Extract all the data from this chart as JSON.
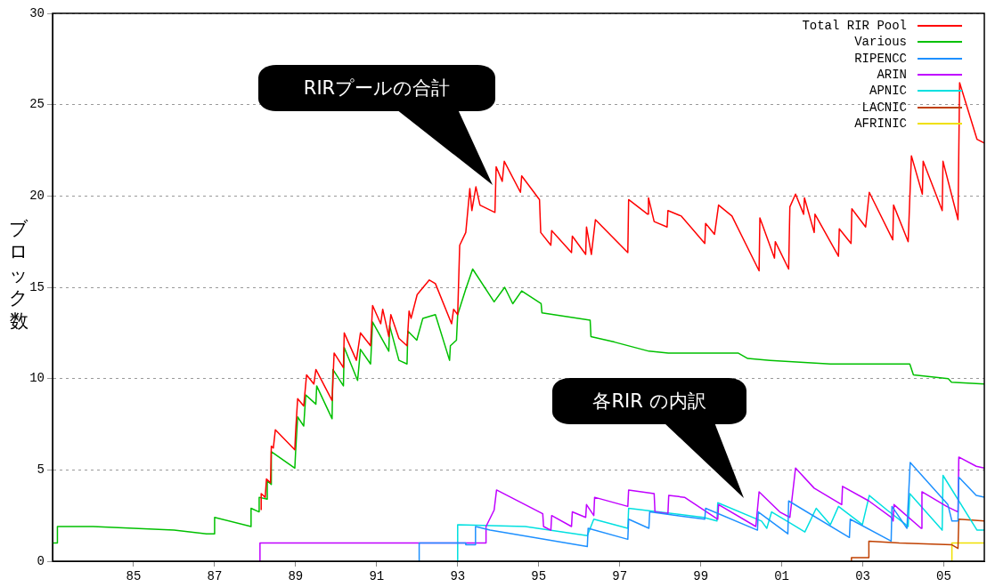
{
  "chart_data": {
    "type": "line",
    "ylabel": "ブロック数",
    "annotations": [
      "RIRプールの合計",
      "各RIR の内訳"
    ],
    "xlim": [
      1983,
      2006
    ],
    "xticks": [
      {
        "value": 1985,
        "label": "85"
      },
      {
        "value": 1987,
        "label": "87"
      },
      {
        "value": 1989,
        "label": "89"
      },
      {
        "value": 1991,
        "label": "91"
      },
      {
        "value": 1993,
        "label": "93"
      },
      {
        "value": 1995,
        "label": "95"
      },
      {
        "value": 1997,
        "label": "97"
      },
      {
        "value": 1999,
        "label": "99"
      },
      {
        "value": 2001,
        "label": "01"
      },
      {
        "value": 2003,
        "label": "03"
      },
      {
        "value": 2005,
        "label": "05"
      }
    ],
    "ylim": [
      0,
      30
    ],
    "yticks": [
      0,
      5,
      10,
      15,
      20,
      25,
      30
    ],
    "grid": "y",
    "legend": "top right",
    "marker": "none",
    "series": [
      {
        "name": "Total RIR Pool",
        "color": "#ff0000",
        "x": [
          1988.15,
          1988.15,
          1988.25,
          1988.28,
          1988.38,
          1988.4,
          1988.45,
          1988.5,
          1988.98,
          1989.0,
          1989.05,
          1989.2,
          1989.27,
          1989.45,
          1989.5,
          1989.9,
          1989.95,
          1990.18,
          1990.2,
          1990.5,
          1990.6,
          1990.85,
          1990.9,
          1991.1,
          1991.15,
          1991.3,
          1991.35,
          1991.55,
          1991.75,
          1991.8,
          1991.85,
          1992.0,
          1992.3,
          1992.45,
          1992.85,
          1992.9,
          1993.0,
          1993.05,
          1993.2,
          1993.3,
          1993.35,
          1993.45,
          1993.55,
          1993.92,
          1993.95,
          1994.1,
          1994.15,
          1994.55,
          1994.58,
          1995.02,
          1995.05,
          1995.3,
          1995.32,
          1995.81,
          1995.83,
          1996.16,
          1996.18,
          1996.3,
          1996.4,
          1997.2,
          1997.22,
          1997.69,
          1997.71,
          1997.85,
          1998.17,
          1998.19,
          1998.52,
          1999.1,
          1999.12,
          1999.34,
          1999.44,
          1999.77,
          2000.44,
          2000.46,
          2000.82,
          2000.84,
          2001.17,
          2001.2,
          2001.34,
          2001.54,
          2001.56,
          2001.8,
          2001.82,
          2002.4,
          2002.42,
          2002.71,
          2002.73,
          2003.07,
          2003.16,
          2003.74,
          2003.76,
          2004.12,
          2004.2,
          2004.47,
          2004.49,
          2004.96,
          2004.98,
          2005.35,
          2005.39,
          2005.82,
          2006.0
        ],
        "values": [
          2.8,
          3.7,
          3.5,
          4.5,
          4.3,
          6.3,
          6.2,
          7.2,
          6.1,
          7.1,
          8.9,
          8.5,
          10.2,
          9.7,
          10.5,
          8.8,
          11.4,
          10.6,
          12.5,
          11.0,
          12.5,
          11.8,
          14.0,
          13.0,
          13.8,
          12.3,
          13.5,
          12.2,
          11.8,
          13.7,
          13.3,
          14.6,
          15.4,
          15.2,
          13.0,
          13.8,
          13.5,
          17.3,
          18.0,
          20.4,
          19.2,
          20.5,
          19.5,
          19.1,
          21.6,
          20.8,
          21.9,
          20.2,
          21.1,
          19.8,
          18.0,
          17.3,
          18.1,
          16.9,
          17.8,
          16.8,
          18.3,
          16.8,
          18.7,
          16.9,
          19.8,
          19.0,
          19.9,
          18.6,
          18.3,
          19.2,
          18.9,
          17.4,
          18.5,
          17.9,
          19.5,
          18.9,
          15.9,
          18.8,
          16.6,
          17.5,
          16.0,
          19.4,
          20.1,
          19.0,
          19.9,
          18.0,
          19.0,
          16.7,
          18.2,
          17.4,
          19.3,
          18.3,
          20.2,
          17.6,
          19.5,
          17.5,
          22.2,
          20.1,
          21.9,
          19.2,
          21.9,
          18.7,
          26.2,
          23.1,
          22.9
        ]
      },
      {
        "name": "Various",
        "color": "#00c000",
        "x": [
          1983.0,
          1983.12,
          1983.12,
          1984.0,
          1985.0,
          1986.0,
          1986.8,
          1987.0,
          1987.0,
          1987.9,
          1987.9,
          1988.1,
          1988.1,
          1988.3,
          1988.3,
          1988.4,
          1988.4,
          1988.98,
          1989.0,
          1989.05,
          1989.2,
          1989.25,
          1989.5,
          1989.52,
          1989.9,
          1989.92,
          1990.18,
          1990.2,
          1990.53,
          1990.6,
          1990.85,
          1990.9,
          1991.3,
          1991.32,
          1991.55,
          1991.75,
          1991.77,
          1991.99,
          1992.14,
          1992.45,
          1992.8,
          1992.82,
          1992.97,
          1993.0,
          1993.2,
          1993.37,
          1993.9,
          1994.16,
          1994.36,
          1994.58,
          1995.06,
          1995.08,
          1996.27,
          1996.29,
          1996.87,
          1997.72,
          1998.2,
          1999.92,
          2000.16,
          2000.71,
          2002.2,
          2004.16,
          2004.25,
          2005.11,
          2005.19,
          2006.0
        ],
        "values": [
          1.0,
          1.0,
          1.9,
          1.9,
          1.8,
          1.7,
          1.5,
          1.5,
          2.4,
          1.9,
          2.9,
          2.7,
          3.5,
          3.4,
          4.4,
          4.2,
          6.0,
          5.1,
          6.0,
          7.9,
          7.4,
          9.1,
          8.6,
          9.6,
          7.8,
          10.5,
          9.6,
          11.7,
          9.9,
          11.6,
          10.8,
          13.1,
          11.5,
          12.9,
          11.0,
          10.8,
          12.6,
          12.1,
          13.3,
          13.5,
          11.0,
          11.8,
          12.1,
          13.5,
          14.9,
          16.0,
          14.2,
          15.0,
          14.1,
          14.8,
          14.1,
          13.6,
          13.2,
          12.3,
          12.0,
          11.5,
          11.4,
          11.4,
          11.1,
          11.0,
          10.8,
          10.8,
          10.2,
          10.0,
          9.8,
          9.7
        ]
      },
      {
        "name": "RIPENCC",
        "color": "#1e90ff",
        "x": [
          1992.05,
          1992.05,
          1993.2,
          1993.2,
          1993.44,
          1993.44,
          1993.8,
          1996.2,
          1996.22,
          1997.2,
          1997.22,
          1997.72,
          1997.74,
          1999.1,
          1999.12,
          2000.4,
          2000.42,
          2001.15,
          2001.17,
          2002.67,
          2002.69,
          2003.7,
          2003.72,
          2004.09,
          2004.17,
          2005.1,
          2005.2,
          2005.35,
          2005.37,
          2005.8,
          2006.0
        ],
        "values": [
          0,
          1.0,
          1.0,
          0.9,
          0.9,
          1.9,
          1.7,
          0.8,
          1.8,
          1.2,
          2.3,
          1.8,
          2.7,
          2.3,
          2.9,
          1.7,
          2.7,
          1.5,
          3.3,
          1.3,
          2.3,
          1.1,
          3.0,
          1.8,
          5.4,
          3.1,
          2.2,
          2.2,
          4.6,
          3.6,
          3.5
        ]
      },
      {
        "name": "ARIN",
        "color": "#c000ff",
        "x": [
          1988.12,
          1988.12,
          1993.7,
          1993.7,
          1993.9,
          1993.96,
          1995.1,
          1995.12,
          1995.3,
          1995.32,
          1995.81,
          1995.83,
          1996.16,
          1996.18,
          1996.36,
          1996.38,
          1997.2,
          1997.22,
          1997.85,
          1997.87,
          1998.19,
          1998.21,
          1998.6,
          1999.42,
          1999.44,
          2000.36,
          2000.44,
          2000.95,
          2001.2,
          2001.34,
          2001.8,
          2002.48,
          2002.5,
          2003.15,
          2003.7,
          2003.75,
          2003.77,
          2004.44,
          2004.46,
          2005.07,
          2005.35,
          2005.37,
          2005.8,
          2006.0
        ],
        "values": [
          0,
          1.0,
          1.0,
          1.9,
          2.8,
          3.9,
          2.6,
          1.9,
          1.7,
          2.5,
          1.9,
          2.7,
          2.4,
          3.1,
          2.5,
          3.5,
          3.0,
          3.9,
          3.7,
          2.7,
          2.6,
          3.6,
          3.5,
          2.3,
          3.1,
          1.9,
          3.8,
          2.7,
          2.4,
          5.1,
          4.0,
          3.1,
          4.1,
          3.3,
          2.4,
          2.2,
          3.1,
          1.8,
          3.8,
          3.0,
          2.7,
          5.7,
          5.2,
          5.1
        ]
      },
      {
        "name": "APNIC",
        "color": "#00e0e0",
        "x": [
          1993.0,
          1993.0,
          1994.67,
          1996.2,
          1996.36,
          1997.2,
          1997.22,
          1999.07,
          1999.4,
          1999.42,
          2000.5,
          2000.63,
          2000.75,
          2001.2,
          2001.57,
          2001.85,
          2002.2,
          2002.4,
          2002.99,
          2003.16,
          2003.6,
          2004.12,
          2004.16,
          2004.96,
          2004.98,
          2005.82,
          2006.0
        ],
        "values": [
          0,
          2.0,
          1.9,
          1.4,
          2.3,
          1.8,
          2.9,
          2.4,
          2.2,
          3.2,
          2.2,
          1.8,
          2.7,
          2.1,
          1.6,
          2.9,
          2.0,
          3.0,
          2.0,
          3.6,
          2.8,
          1.9,
          3.7,
          1.7,
          4.7,
          1.7,
          1.7
        ]
      },
      {
        "name": "LACNIC",
        "color": "#c04000",
        "x": [
          2002.72,
          2002.72,
          2003.15,
          2003.15,
          2003.9,
          2005.2,
          2005.35,
          2005.37,
          2006.0
        ],
        "values": [
          0,
          0.2,
          0.2,
          1.1,
          1.0,
          0.9,
          0.7,
          2.3,
          2.2
        ]
      },
      {
        "name": "AFRINIC",
        "color": "#f0e000",
        "x": [
          2005.2,
          2005.2,
          2006.0
        ],
        "values": [
          0,
          1.0,
          1.0
        ]
      }
    ]
  }
}
